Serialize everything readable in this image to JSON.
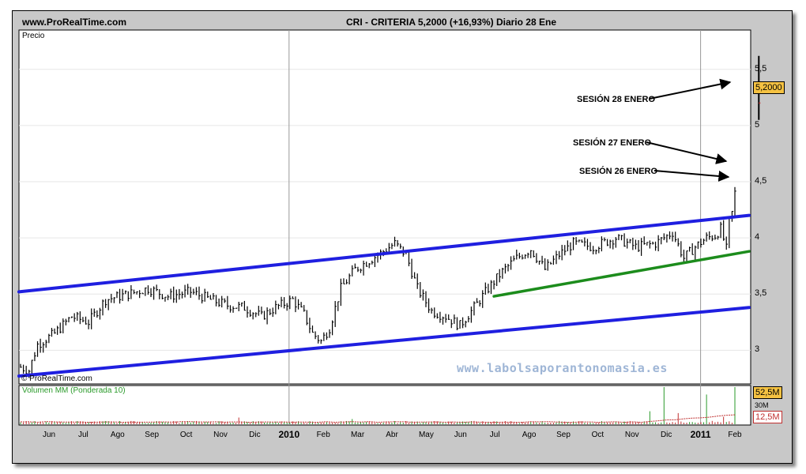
{
  "header": {
    "site": "www.ProRealTime.com",
    "title": "CRI - CRITERIA    5,2000 (+16,93%)   Diario  28 Ene"
  },
  "price_panel": {
    "label": "Precio",
    "copyright": "© ProRealTime.com",
    "last_price_tag": "5,2000",
    "watermark": "www.labolsaporantonomasia.es"
  },
  "volume_panel": {
    "label": "Volumen MM (Ponderada 10)",
    "tag_high": "52,5M",
    "tag_avg": "12,5M",
    "partial_tick": "30M"
  },
  "annotations": [
    {
      "text": "SESIÓN 28 ENERO"
    },
    {
      "text": "SESIÓN 27 ENERO"
    },
    {
      "text": "SESIÓN 26 ENERO"
    }
  ],
  "colors": {
    "channel": "#1f1fe0",
    "support": "#1c8c1c",
    "bar": "#000000",
    "volume_up": "#2a9a2a",
    "volume_down": "#c03030",
    "volume_ma": "#c03030",
    "tag_fill": "#f5c242"
  },
  "chart_data": {
    "type": "bar",
    "y_axis": {
      "min": 2.7,
      "max": 5.85,
      "ticks": [
        3,
        3.5,
        4,
        4.5,
        5,
        5.5
      ],
      "tick_labels": [
        "3",
        "3,5",
        "4",
        "4,5",
        "5",
        "5,5"
      ]
    },
    "x_axis": {
      "labels": [
        {
          "text": "Jun",
          "year": false
        },
        {
          "text": "Jul",
          "year": false
        },
        {
          "text": "Ago",
          "year": false
        },
        {
          "text": "Sep",
          "year": false
        },
        {
          "text": "Oct",
          "year": false
        },
        {
          "text": "Nov",
          "year": false
        },
        {
          "text": "Dic",
          "year": false
        },
        {
          "text": "2010",
          "year": true
        },
        {
          "text": "Feb",
          "year": false
        },
        {
          "text": "Mar",
          "year": false
        },
        {
          "text": "Abr",
          "year": false
        },
        {
          "text": "May",
          "year": false
        },
        {
          "text": "Jun",
          "year": false
        },
        {
          "text": "Jul",
          "year": false
        },
        {
          "text": "Ago",
          "year": false
        },
        {
          "text": "Sep",
          "year": false
        },
        {
          "text": "Oct",
          "year": false
        },
        {
          "text": "Nov",
          "year": false
        },
        {
          "text": "Dic",
          "year": false
        },
        {
          "text": "2011",
          "year": true
        },
        {
          "text": "Feb",
          "year": false
        }
      ]
    },
    "price_path": [
      [
        0,
        2.85
      ],
      [
        3,
        2.82
      ],
      [
        6,
        3.05
      ],
      [
        12,
        3.15
      ],
      [
        18,
        3.3
      ],
      [
        24,
        3.25
      ],
      [
        30,
        3.45
      ],
      [
        38,
        3.5
      ],
      [
        45,
        3.55
      ],
      [
        52,
        3.48
      ],
      [
        60,
        3.52
      ],
      [
        67,
        3.45
      ],
      [
        73,
        3.4
      ],
      [
        79,
        3.38
      ],
      [
        85,
        3.3
      ],
      [
        90,
        3.38
      ],
      [
        96,
        3.45
      ],
      [
        100,
        3.32
      ],
      [
        103,
        3.15
      ],
      [
        106,
        3.08
      ],
      [
        109,
        3.2
      ],
      [
        113,
        3.55
      ],
      [
        118,
        3.72
      ],
      [
        123,
        3.8
      ],
      [
        128,
        3.88
      ],
      [
        132,
        3.95
      ],
      [
        136,
        3.85
      ],
      [
        140,
        3.55
      ],
      [
        145,
        3.35
      ],
      [
        150,
        3.3
      ],
      [
        155,
        3.22
      ],
      [
        160,
        3.38
      ],
      [
        165,
        3.55
      ],
      [
        170,
        3.7
      ],
      [
        175,
        3.82
      ],
      [
        180,
        3.9
      ],
      [
        185,
        3.72
      ],
      [
        190,
        3.85
      ],
      [
        195,
        3.95
      ],
      [
        202,
        3.92
      ],
      [
        210,
        4.0
      ],
      [
        217,
        3.92
      ],
      [
        224,
        3.95
      ],
      [
        230,
        4.05
      ],
      [
        234,
        3.82
      ],
      [
        238,
        3.92
      ],
      [
        242,
        4.0
      ],
      [
        245,
        4.02
      ],
      [
        247,
        4.08
      ],
      [
        249,
        3.9
      ],
      [
        250,
        4.15
      ],
      [
        251,
        4.22
      ],
      [
        252,
        4.4
      ]
    ],
    "last_session": {
      "low": 5.05,
      "high": 5.62,
      "close": 5.2
    },
    "channel_upper": [
      [
        0,
        3.52
      ],
      [
        252,
        4.2
      ]
    ],
    "channel_lower": [
      [
        0,
        2.77
      ],
      [
        252,
        3.38
      ]
    ],
    "support_line": [
      [
        167,
        3.48
      ],
      [
        252,
        3.88
      ]
    ],
    "volume_spikes": [
      [
        77,
        0.18
      ],
      [
        117,
        0.14
      ],
      [
        222,
        0.35
      ],
      [
        227,
        1.0
      ],
      [
        232,
        0.3
      ],
      [
        242,
        0.8
      ],
      [
        248,
        0.2
      ],
      [
        252,
        1.0
      ]
    ]
  }
}
